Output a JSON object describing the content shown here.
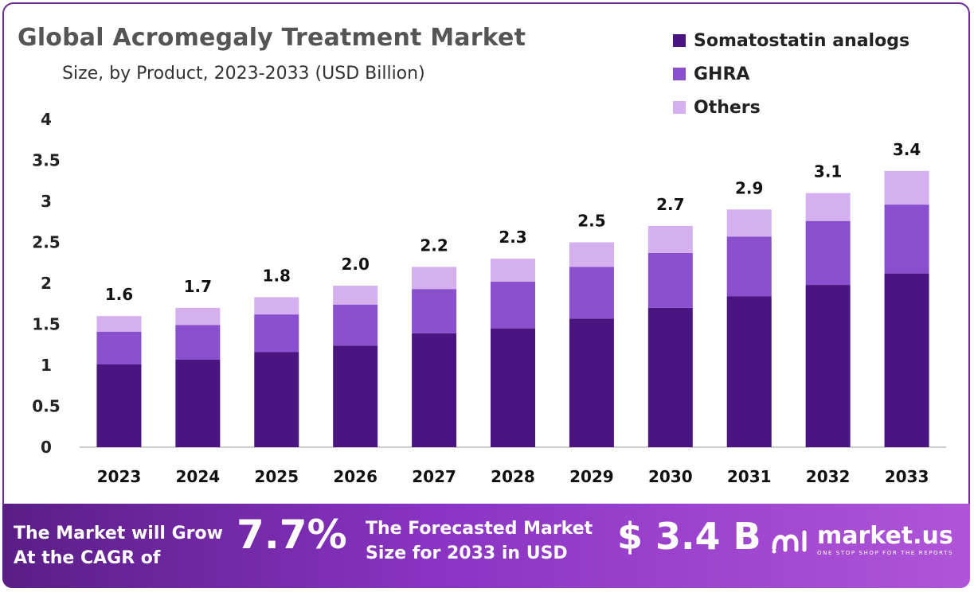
{
  "header": {
    "title": "Global Acromegaly Treatment Market",
    "subtitle": "Size, by Product, 2023-2033 (USD Billion)"
  },
  "colors": {
    "somatostatin": "#4a1580",
    "ghra": "#8a4fcc",
    "others": "#d4b0ee",
    "frame": "#6a2c91"
  },
  "legend": [
    {
      "label": "Somatostatin analogs",
      "color": "#4a1580"
    },
    {
      "label": "GHRA",
      "color": "#8a4fcc"
    },
    {
      "label": "Others",
      "color": "#d4b0ee"
    }
  ],
  "chart_data": {
    "type": "bar",
    "stacked": true,
    "categories": [
      "2023",
      "2024",
      "2025",
      "2026",
      "2027",
      "2028",
      "2029",
      "2030",
      "2031",
      "2032",
      "2033"
    ],
    "series": [
      {
        "name": "Somatostatin analogs",
        "values": [
          1.01,
          1.07,
          1.16,
          1.24,
          1.39,
          1.45,
          1.57,
          1.7,
          1.84,
          1.98,
          2.12
        ]
      },
      {
        "name": "GHRA",
        "values": [
          0.4,
          0.42,
          0.46,
          0.5,
          0.54,
          0.57,
          0.63,
          0.67,
          0.73,
          0.78,
          0.84
        ]
      },
      {
        "name": "Others",
        "values": [
          0.19,
          0.21,
          0.21,
          0.23,
          0.27,
          0.28,
          0.3,
          0.33,
          0.33,
          0.34,
          0.41
        ]
      }
    ],
    "totals_labels": [
      "1.6",
      "1.7",
      "1.8",
      "2.0",
      "2.2",
      "2.3",
      "2.5",
      "2.7",
      "2.9",
      "3.1",
      "3.4"
    ],
    "y_ticks": [
      "0",
      "0.5",
      "1",
      "1.5",
      "2",
      "2.5",
      "3",
      "3.5",
      "4"
    ],
    "ylim": [
      0,
      4
    ],
    "grid": false,
    "legend_position": "top-right"
  },
  "footer": {
    "cagr_label": "The Market will Grow At the CAGR of",
    "cagr_value": "7.7%",
    "size_label": "The Forecasted Market Size for 2033 in USD",
    "size_value": "$ 3.4 B",
    "brand_name": "market.us",
    "brand_tagline": "ONE STOP SHOP FOR THE REPORTS"
  }
}
